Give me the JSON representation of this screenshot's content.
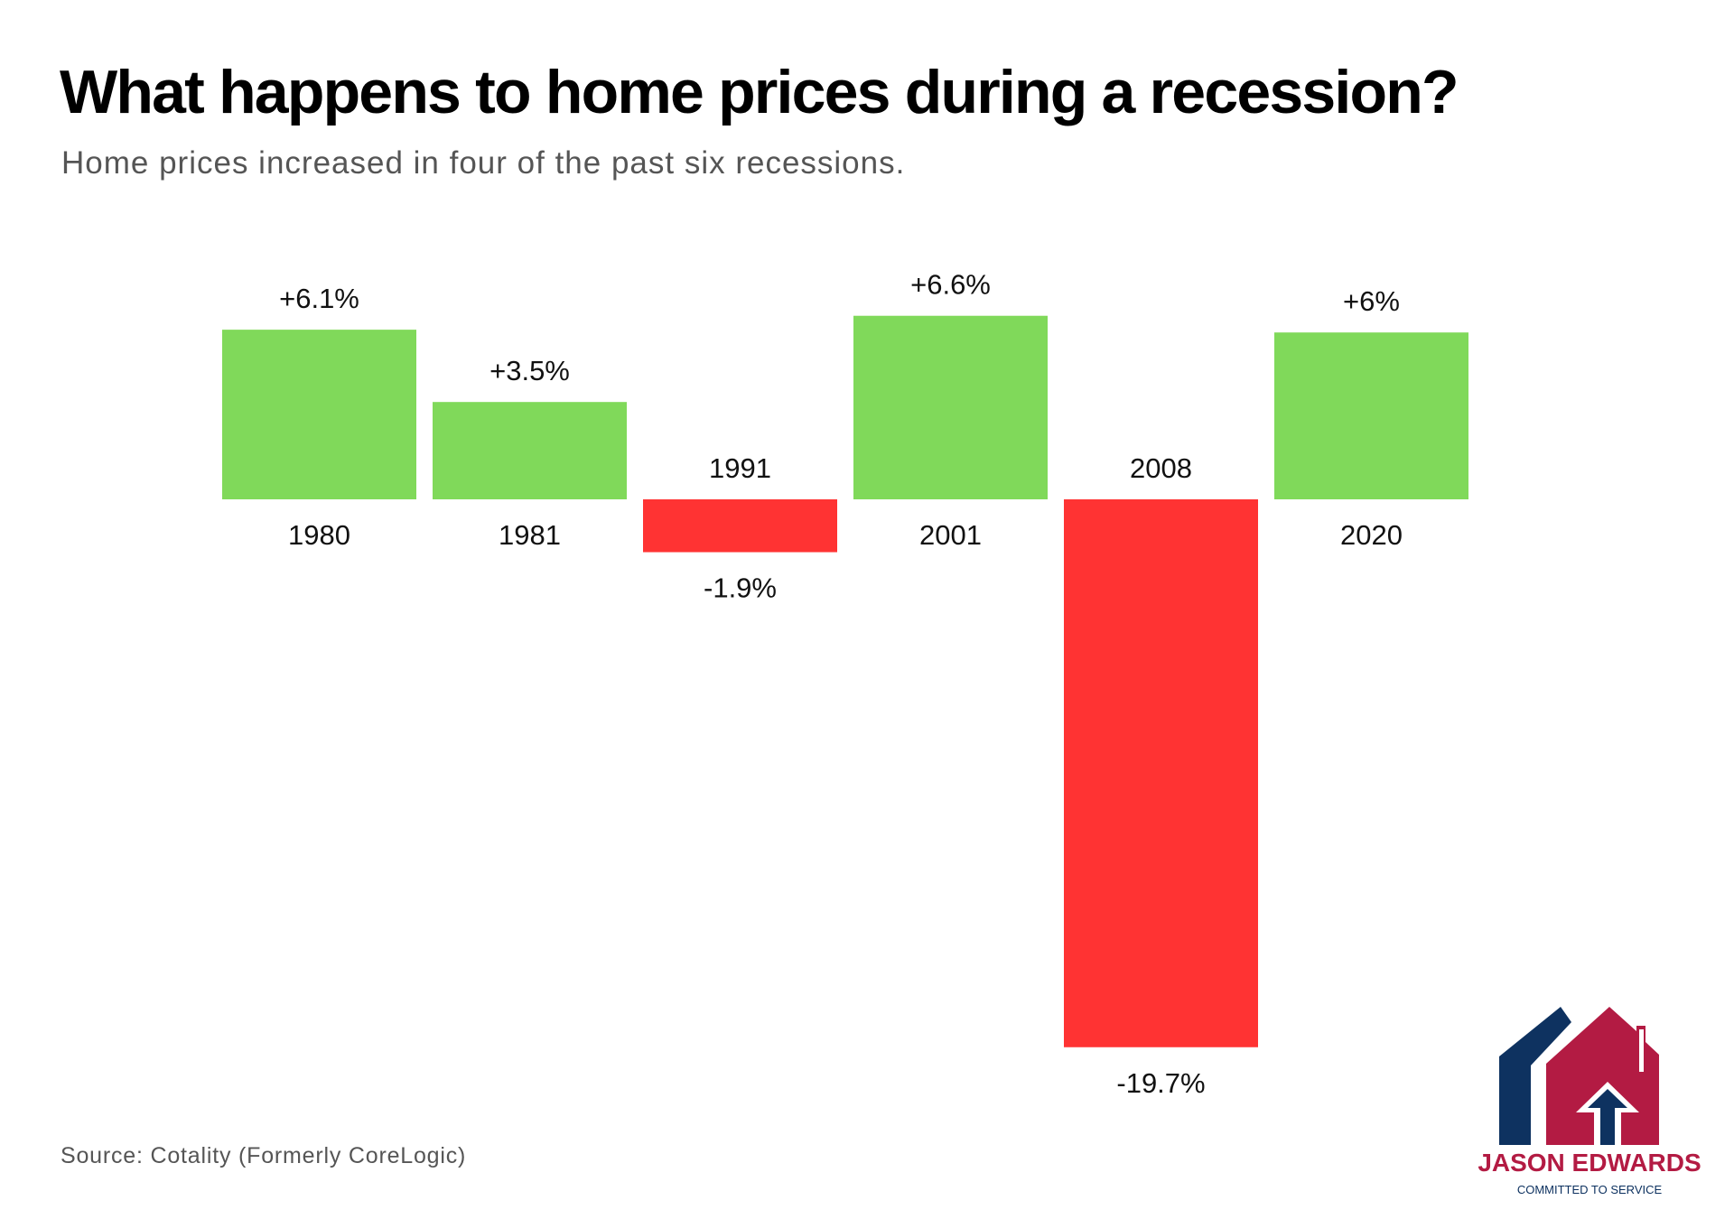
{
  "header": {
    "title": "What happens to home prices during a recession?",
    "subtitle": "Home prices increased in four of the past six recessions."
  },
  "footer": {
    "source": "Source: Cotality (Formerly CoreLogic)"
  },
  "logo": {
    "name": "JASON EDWARDS",
    "tagline": "COMMITTED TO SERVICE",
    "icon": "house-up-arrow-icon",
    "colors": {
      "navy": "#0e3260",
      "crimson": "#b31b43"
    }
  },
  "colors": {
    "positive": "#80d95a",
    "negative": "#ff3333"
  },
  "chart_data": {
    "type": "bar",
    "title": "What happens to home prices during a recession?",
    "subtitle": "Home prices increased in four of the past six recessions.",
    "xlabel": "",
    "ylabel": "",
    "categories": [
      "1980",
      "1981",
      "1991",
      "2001",
      "2008",
      "2020"
    ],
    "values": [
      6.1,
      3.5,
      -1.9,
      6.6,
      -19.7,
      6
    ],
    "data_labels": [
      "+6.1%",
      "+3.5%",
      "-1.9%",
      "+6.6%",
      "-19.7%",
      "+6%"
    ],
    "ylim": [
      -20,
      7
    ],
    "grid": false,
    "legend": "none",
    "axis_visible": false
  }
}
